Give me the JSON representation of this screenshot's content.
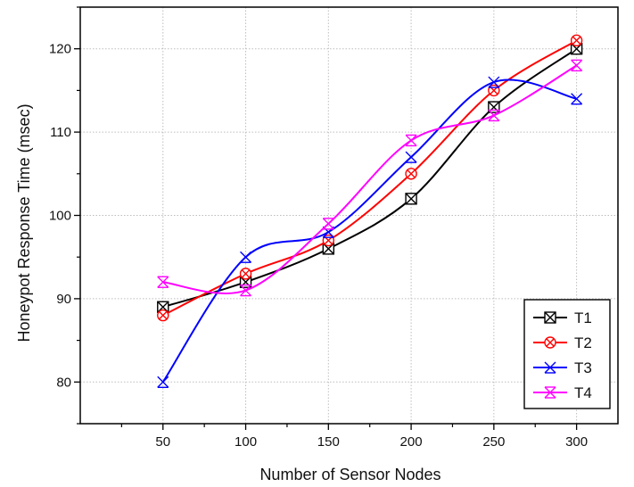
{
  "chart_data": {
    "type": "line",
    "title": "",
    "xlabel": "Number of Sensor Nodes",
    "ylabel": "Honeypot Response Time (msec)",
    "x": [
      50,
      100,
      150,
      200,
      250,
      300
    ],
    "xlim": [
      0,
      325
    ],
    "ylim": [
      75,
      125
    ],
    "xticks": [
      "50",
      "100",
      "150",
      "200",
      "250",
      "300"
    ],
    "yticks": [
      "80",
      "90",
      "100",
      "110",
      "120"
    ],
    "grid": true,
    "legend_position": "bottom-right",
    "series": [
      {
        "name": "T1",
        "color": "#000000",
        "marker": "square-x",
        "values": [
          89,
          92,
          96,
          102,
          113,
          120
        ]
      },
      {
        "name": "T2",
        "color": "#ff0000",
        "marker": "circle-x",
        "values": [
          88,
          93,
          97,
          105,
          115,
          121
        ]
      },
      {
        "name": "T3",
        "color": "#0000ff",
        "marker": "cross",
        "values": [
          80,
          95,
          98,
          107,
          116,
          114
        ]
      },
      {
        "name": "T4",
        "color": "#ff00ff",
        "marker": "star",
        "values": [
          92,
          91,
          99,
          109,
          112,
          118
        ]
      }
    ]
  }
}
